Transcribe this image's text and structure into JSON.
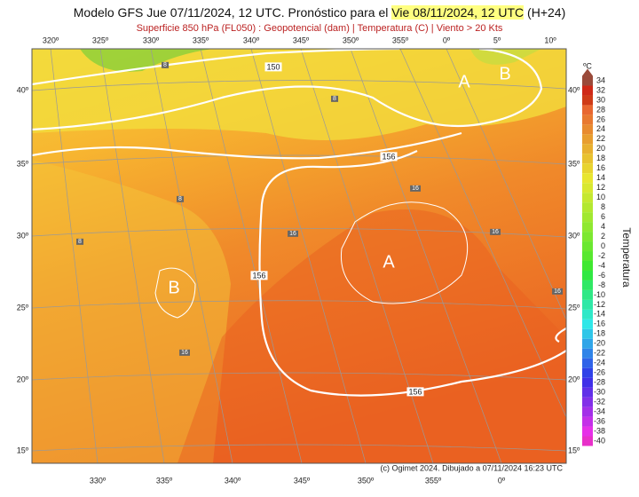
{
  "header": {
    "title_start": "Modelo GFS Jue 07/11/2024, 12 UTC. Pronóstico para el ",
    "title_highlight": "Vie 08/11/2024, 12 UTC",
    "title_end": " (H+24)",
    "subtitle": "Superficie 850 hPa (FL050) : Geopotencial (dam) | Temperatura (C) | Viento > 20 Kts"
  },
  "map": {
    "top_longitudes": [
      "320º",
      "325º",
      "330º",
      "335º",
      "340º",
      "345º",
      "350º",
      "355º",
      "0º",
      "5º",
      "10º"
    ],
    "bottom_longitudes": [
      "330º",
      "335º",
      "340º",
      "345º",
      "350º",
      "355º",
      "0º"
    ],
    "left_latitudes": [
      "40º",
      "35º",
      "30º",
      "25º",
      "20º",
      "15º"
    ],
    "right_latitudes": [
      "40º",
      "35º",
      "30º",
      "25º",
      "20º",
      "15º"
    ],
    "contour_labels": [
      "150",
      "156",
      "156",
      "156"
    ],
    "temperature_labels": [
      "8",
      "8",
      "8",
      "8",
      "16",
      "16",
      "16",
      "16",
      "16"
    ],
    "pressure_centers": [
      "A",
      "B",
      "A",
      "B"
    ],
    "credit": "(c) Ogimet 2024. Dibujado a 07/11/2024 16:23 UTC"
  },
  "colorbar": {
    "unit": "ºC",
    "title": "Temperatura",
    "ticks": [
      34,
      32,
      30,
      28,
      26,
      24,
      22,
      20,
      18,
      16,
      14,
      12,
      10,
      8,
      6,
      4,
      2,
      0,
      -2,
      -4,
      -6,
      -8,
      -10,
      -12,
      -14,
      -16,
      -18,
      -20,
      -22,
      -24,
      -26,
      -28,
      -30,
      -32,
      -34,
      -36,
      -38,
      -40
    ]
  }
}
